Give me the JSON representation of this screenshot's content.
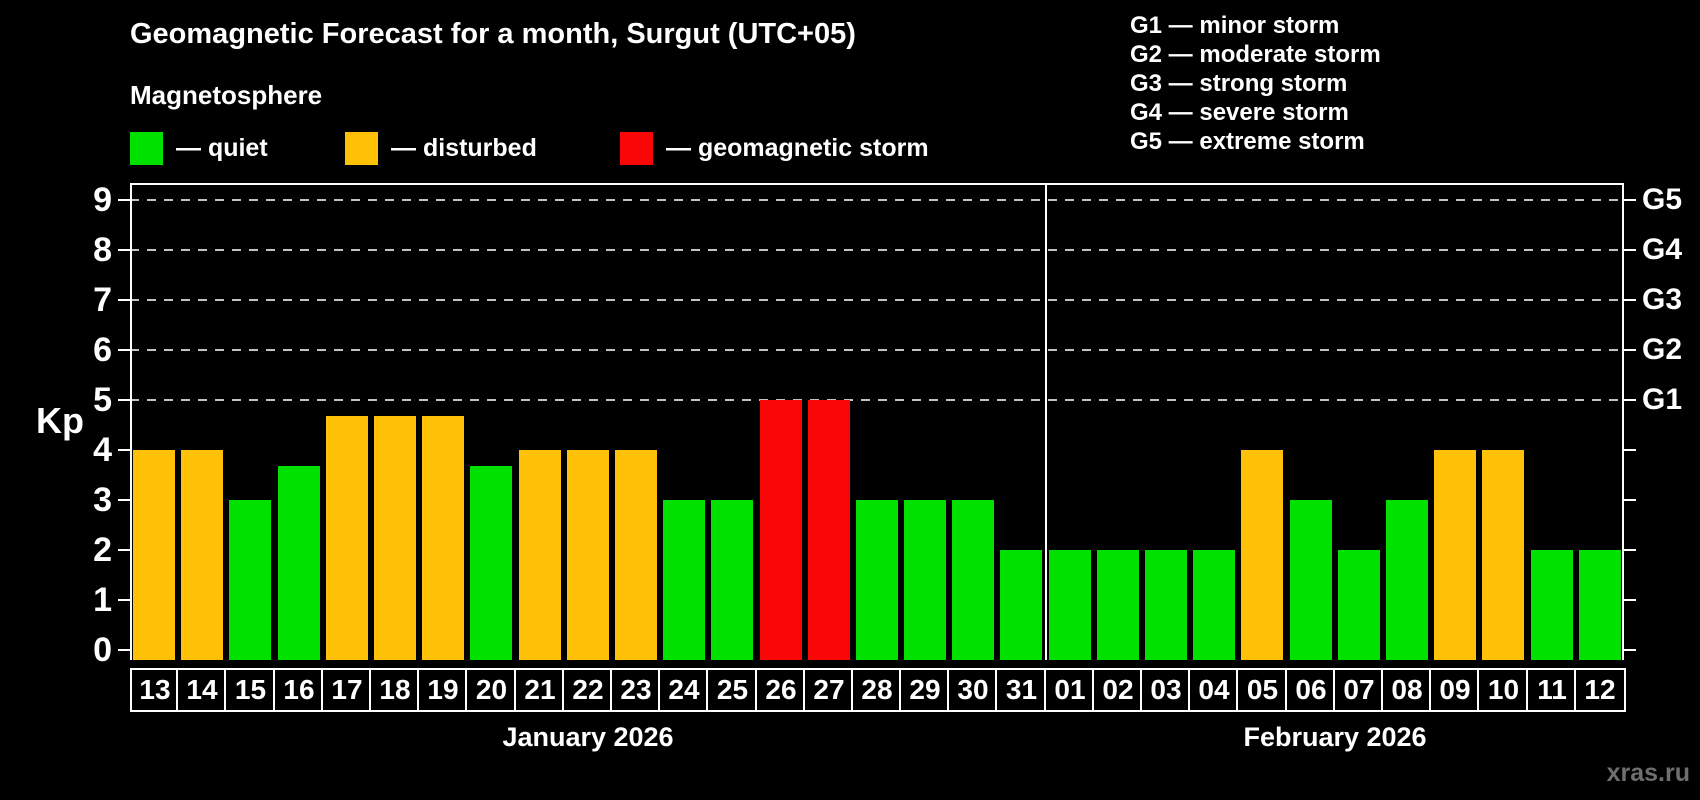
{
  "title": "Geomagnetic Forecast for a month, Surgut (UTC+05)",
  "subtitle": "Magnetosphere",
  "watermark": "xras.ru",
  "status_legend": [
    {
      "key": "quiet",
      "label": "— quiet",
      "color": "#00e100"
    },
    {
      "key": "disturbed",
      "label": "— disturbed",
      "color": "#ffc107"
    },
    {
      "key": "storm",
      "label": "— geomagnetic storm",
      "color": "#f90606"
    }
  ],
  "storm_scale_legend": [
    "G1 — minor storm",
    "G2 — moderate storm",
    "G3 — strong storm",
    "G4 — severe storm",
    "G5 — extreme storm"
  ],
  "chart_data": {
    "type": "bar",
    "title": "Geomagnetic Forecast for a month, Surgut (UTC+05)",
    "ylabel": "Kp",
    "ylim": [
      0,
      9
    ],
    "yticks": [
      0,
      1,
      2,
      3,
      4,
      5,
      6,
      7,
      8,
      9
    ],
    "grid_dashed_at": [
      5,
      6,
      7,
      8,
      9
    ],
    "grid": "dashed horizontal lines at Kp 5-9 only",
    "legend_position": "top-left",
    "right_axis_labels": [
      {
        "kp": 5,
        "label": "G1"
      },
      {
        "kp": 6,
        "label": "G2"
      },
      {
        "kp": 7,
        "label": "G3"
      },
      {
        "kp": 8,
        "label": "G4"
      },
      {
        "kp": 9,
        "label": "G5"
      }
    ],
    "colors": {
      "quiet": "#00e100",
      "disturbed": "#ffc107",
      "storm": "#f90606"
    },
    "months": [
      {
        "label": "January 2026",
        "days": [
          {
            "day": "13",
            "kp": 4,
            "status": "disturbed"
          },
          {
            "day": "14",
            "kp": 4,
            "status": "disturbed"
          },
          {
            "day": "15",
            "kp": 3,
            "status": "quiet"
          },
          {
            "day": "16",
            "kp": 3.67,
            "status": "quiet"
          },
          {
            "day": "17",
            "kp": 4.67,
            "status": "disturbed"
          },
          {
            "day": "18",
            "kp": 4.67,
            "status": "disturbed"
          },
          {
            "day": "19",
            "kp": 4.67,
            "status": "disturbed"
          },
          {
            "day": "20",
            "kp": 3.67,
            "status": "quiet"
          },
          {
            "day": "21",
            "kp": 4,
            "status": "disturbed"
          },
          {
            "day": "22",
            "kp": 4,
            "status": "disturbed"
          },
          {
            "day": "23",
            "kp": 4,
            "status": "disturbed"
          },
          {
            "day": "24",
            "kp": 3,
            "status": "quiet"
          },
          {
            "day": "25",
            "kp": 3,
            "status": "quiet"
          },
          {
            "day": "26",
            "kp": 5,
            "status": "storm"
          },
          {
            "day": "27",
            "kp": 5,
            "status": "storm"
          },
          {
            "day": "28",
            "kp": 3,
            "status": "quiet"
          },
          {
            "day": "29",
            "kp": 3,
            "status": "quiet"
          },
          {
            "day": "30",
            "kp": 3,
            "status": "quiet"
          },
          {
            "day": "31",
            "kp": 2,
            "status": "quiet"
          }
        ]
      },
      {
        "label": "February 2026",
        "days": [
          {
            "day": "01",
            "kp": 2,
            "status": "quiet"
          },
          {
            "day": "02",
            "kp": 2,
            "status": "quiet"
          },
          {
            "day": "03",
            "kp": 2,
            "status": "quiet"
          },
          {
            "day": "04",
            "kp": 2,
            "status": "quiet"
          },
          {
            "day": "05",
            "kp": 4,
            "status": "disturbed"
          },
          {
            "day": "06",
            "kp": 3,
            "status": "quiet"
          },
          {
            "day": "07",
            "kp": 2,
            "status": "quiet"
          },
          {
            "day": "08",
            "kp": 3,
            "status": "quiet"
          },
          {
            "day": "09",
            "kp": 4,
            "status": "disturbed"
          },
          {
            "day": "10",
            "kp": 4,
            "status": "disturbed"
          },
          {
            "day": "11",
            "kp": 2,
            "status": "quiet"
          },
          {
            "day": "12",
            "kp": 2,
            "status": "quiet"
          }
        ]
      }
    ]
  }
}
